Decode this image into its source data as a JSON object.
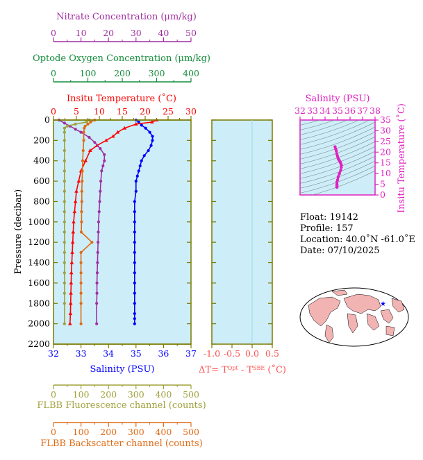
{
  "colors": {
    "nitrate": "#a02fa0",
    "oxygen": "#148c3c",
    "temperature": "#ff0000",
    "salinity": "#0000ff",
    "fluorescence": "#a0a03c",
    "backscatter": "#e06a14",
    "plot_bg": "#cdeef8",
    "axis_olive": "#7a7a00",
    "ts_magenta": "#e020c0",
    "dt_red": "#ff5050"
  },
  "info": {
    "float": "Float:  19142",
    "profile": "Profile:  157",
    "location": "Location:  40.0˚N  -61.0˚E",
    "date": "Date:  07/10/2025"
  },
  "chart_data": [
    {
      "type": "line",
      "panel": "main",
      "ylabel": "Pressure (decibar)",
      "ylim": [
        2200,
        0
      ],
      "yticks": [
        "0",
        "200",
        "400",
        "600",
        "800",
        "1000",
        "1200",
        "1400",
        "1600",
        "1800",
        "2000",
        "2200"
      ],
      "grid": false,
      "axes": {
        "nitrate": {
          "label": "Nitrate Concentration (μm/kg)",
          "range": [
            0,
            50
          ],
          "ticks": [
            "0",
            "10",
            "20",
            "30",
            "40",
            "50"
          ]
        },
        "oxygen": {
          "label": "Optode Oxygen Concentration (μm/kg)",
          "range": [
            0,
            400
          ],
          "ticks": [
            "0",
            "100",
            "200",
            "300",
            "400"
          ]
        },
        "temperature": {
          "label": "Insitu Temperature (˚C)",
          "range": [
            0,
            30
          ],
          "ticks": [
            "0",
            "5",
            "10",
            "15",
            "20",
            "25",
            "30"
          ]
        },
        "salinity": {
          "label": "Salinity (PSU)",
          "range": [
            32,
            37
          ],
          "ticks": [
            "32",
            "33",
            "34",
            "35",
            "36",
            "37"
          ]
        },
        "fluorescence": {
          "label": "FLBB Fluorescence channel (counts)",
          "range": [
            0,
            500
          ],
          "ticks": [
            "0",
            "100",
            "200",
            "300",
            "400",
            "500"
          ]
        },
        "backscatter": {
          "label": "FLBB Backscatter channel (counts)",
          "range": [
            0,
            500
          ],
          "ticks": [
            "0",
            "100",
            "200",
            "300",
            "400",
            "500"
          ]
        }
      },
      "series": [
        {
          "key": "salinity",
          "x": [
            35.0,
            35.1,
            35.2,
            35.35,
            35.5,
            35.6,
            35.6,
            35.55,
            35.45,
            35.3,
            35.2,
            35.15,
            35.1,
            35.05,
            35.0,
            35.0,
            34.95,
            34.95,
            34.95,
            34.95,
            34.95,
            34.95,
            34.95,
            34.95,
            34.95,
            34.95,
            34.95,
            34.95,
            34.95,
            34.95
          ],
          "p": [
            0,
            20,
            50,
            80,
            120,
            160,
            200,
            250,
            300,
            350,
            400,
            450,
            500,
            550,
            600,
            700,
            800,
            900,
            1000,
            1100,
            1200,
            1300,
            1400,
            1500,
            1600,
            1700,
            1800,
            1900,
            1950,
            2000
          ]
        },
        {
          "key": "temperature",
          "x": [
            22.5,
            21.5,
            18,
            15.5,
            14,
            13,
            11.5,
            9.5,
            8,
            7,
            6,
            5.5,
            5,
            4.8,
            4.6,
            4.4,
            4.3,
            4.2,
            4.1,
            4.0,
            3.9,
            3.85,
            3.8,
            3.75,
            3.7,
            3.6
          ],
          "p": [
            0,
            20,
            40,
            80,
            120,
            160,
            200,
            250,
            300,
            400,
            500,
            600,
            700,
            800,
            900,
            1000,
            1100,
            1200,
            1300,
            1400,
            1500,
            1600,
            1700,
            1800,
            1900,
            2000
          ]
        },
        {
          "key": "nitrate",
          "x": [
            2,
            4,
            6,
            8,
            10,
            13,
            15,
            17,
            18.5,
            18.5,
            18,
            17.5,
            17.2,
            17,
            16.8,
            16.6,
            16.4,
            16.3,
            16.2,
            16.1,
            16.0,
            15.9,
            15.8,
            15.8,
            15.7,
            15.7
          ],
          "p": [
            0,
            30,
            60,
            90,
            120,
            170,
            220,
            280,
            340,
            400,
            450,
            500,
            600,
            700,
            800,
            900,
            1000,
            1100,
            1200,
            1300,
            1400,
            1500,
            1600,
            1700,
            1800,
            2000
          ]
        },
        {
          "key": "fluorescence",
          "x": [
            130,
            120,
            80,
            50,
            40,
            40,
            40,
            40,
            40,
            40,
            40,
            40,
            40,
            40,
            40,
            40,
            40,
            40,
            40,
            40,
            40,
            40,
            40,
            40
          ],
          "p": [
            0,
            20,
            40,
            60,
            80,
            120,
            200,
            300,
            400,
            500,
            600,
            700,
            800,
            900,
            1000,
            1100,
            1200,
            1300,
            1400,
            1500,
            1600,
            1700,
            1800,
            2000
          ]
        },
        {
          "key": "backscatter",
          "x": [
            150,
            135,
            125,
            115,
            112,
            110,
            110,
            108,
            106,
            105,
            104,
            103,
            103,
            102,
            102,
            101,
            140,
            100,
            100,
            100,
            100,
            100,
            100,
            100
          ],
          "p": [
            0,
            20,
            40,
            60,
            80,
            120,
            200,
            300,
            400,
            500,
            600,
            700,
            800,
            900,
            1000,
            1100,
            1200,
            1300,
            1400,
            1500,
            1600,
            1700,
            1800,
            2000
          ]
        }
      ]
    },
    {
      "type": "line",
      "panel": "delta_t",
      "xlabel": "ΔT= Tᴼᵖᵗ - Tˢᴮᴱ (˚C)",
      "xlim": [
        -1.0,
        0.5
      ],
      "xticks": [
        "-1.0",
        "-0.5",
        "0.0",
        "0.5"
      ],
      "ylim": [
        2200,
        0
      ],
      "series": [
        {
          "key": "delta_t",
          "x": [
            0.0,
            0.0
          ],
          "p": [
            0,
            2200
          ]
        }
      ]
    },
    {
      "type": "scatter",
      "panel": "ts_diagram",
      "xlabel": "Salinity (PSU)",
      "ylabel": "Insitu Temperature (˚C)",
      "xlim": [
        32,
        38
      ],
      "ylim": [
        0,
        35
      ],
      "xticks": [
        "32",
        "33",
        "34",
        "35",
        "36",
        "37",
        "38"
      ],
      "yticks": [
        "0",
        "5",
        "10",
        "15",
        "20",
        "25",
        "30",
        "35"
      ],
      "series": [
        {
          "key": "ts",
          "x": [
            34.8,
            34.85,
            34.9,
            34.95,
            35.0,
            35.05,
            35.1,
            35.15,
            35.2,
            35.25,
            35.3,
            35.3,
            35.25,
            35.15,
            35.05,
            35.0,
            34.95,
            34.95,
            34.95,
            34.95,
            34.95
          ],
          "y": [
            22.5,
            21.5,
            20.5,
            19,
            18,
            17,
            16.5,
            16,
            15.5,
            14.8,
            14,
            13,
            11.5,
            10,
            8.5,
            7,
            6,
            5,
            4.5,
            4,
            3.6
          ]
        }
      ]
    }
  ]
}
